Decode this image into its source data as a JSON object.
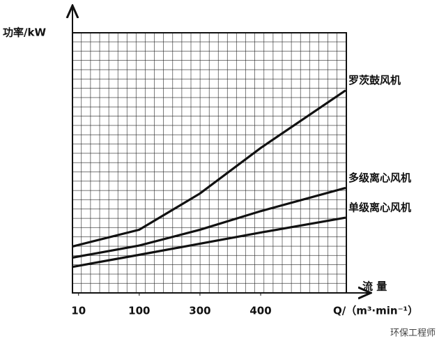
{
  "chart_data": {
    "type": "line",
    "y_label": "功率/kW",
    "x_label": "流 量",
    "x_unit": "Q/（m³·min⁻¹）",
    "watermark": "环保工程师",
    "x": [
      -0.1,
      1,
      2,
      3,
      4.4
    ],
    "xlim": [
      -0.1,
      4.4
    ],
    "xticks": [
      {
        "value": 0,
        "label": "10"
      },
      {
        "value": 1,
        "label": "100"
      },
      {
        "value": 2,
        "label": "300"
      },
      {
        "value": 3,
        "label": "400"
      }
    ],
    "ylim": [
      0,
      28
    ],
    "series": [
      {
        "name": "罗茨鼓风机",
        "color": "#111111",
        "values": [
          5.0,
          6.8,
          10.7,
          15.6,
          21.8
        ]
      },
      {
        "name": "多级离心风机",
        "color": "#111111",
        "values": [
          3.8,
          5.1,
          6.8,
          8.8,
          11.3
        ]
      },
      {
        "name": "单级离心风机",
        "color": "#111111",
        "values": [
          2.8,
          4.1,
          5.3,
          6.5,
          8.1
        ]
      }
    ]
  }
}
